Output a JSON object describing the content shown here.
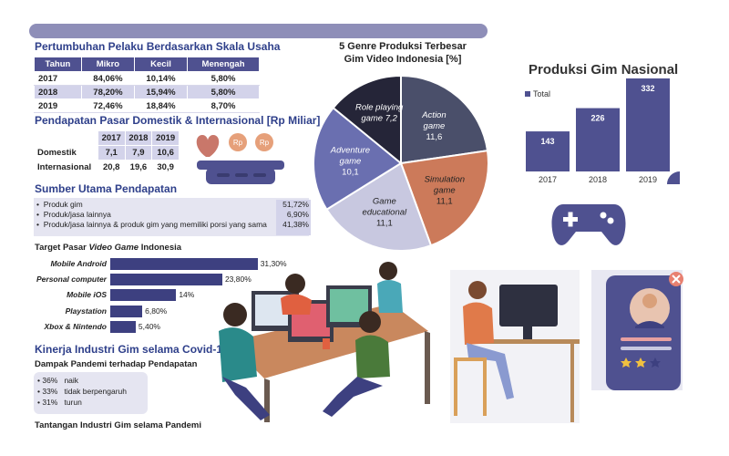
{
  "growth": {
    "title": "Pertumbuhan Pelaku Berdasarkan Skala Usaha",
    "headers": [
      "Tahun",
      "Mikro",
      "Kecil",
      "Menengah"
    ],
    "rows": [
      [
        "2017",
        "84,06%",
        "10,14%",
        "5,80%"
      ],
      [
        "2018",
        "78,20%",
        "15,94%",
        "5,80%"
      ],
      [
        "2019",
        "72,46%",
        "18,84%",
        "8,70%"
      ]
    ]
  },
  "market": {
    "title": "Pendapatan Pasar Domestik & Internasional [Rp Miliar]",
    "headers": [
      "2017",
      "2018",
      "2019"
    ],
    "rows": [
      [
        "Domestik",
        "7,1",
        "7,9",
        "10,6"
      ],
      [
        "Internasional",
        "20,8",
        "19,6",
        "30,9"
      ]
    ]
  },
  "revenue": {
    "title": "Sumber Utama Pendapatan",
    "items": [
      {
        "label": "Produk gim",
        "value": "51,72%"
      },
      {
        "label": "Produk/jasa lainnya",
        "value": "6,90%"
      },
      {
        "label": "Produk/jasa lainnya & produk gim yang memiliki porsi yang sama",
        "value": "41,38%"
      }
    ]
  },
  "target": {
    "title_plain": "Target Pasar ",
    "title_italic": "Video Game",
    "title_end": " Indonesia"
  },
  "covid": {
    "title": "Kinerja Industri Gim selama Covid-19",
    "subtitle": "Dampak Pandemi terhadap Pendapatan",
    "items": [
      {
        "pct": "36%",
        "label": "naik"
      },
      {
        "pct": "33%",
        "label": "tidak berpengaruh"
      },
      {
        "pct": "31%",
        "label": "turun"
      }
    ],
    "footer": "Tantangan Industri Gim selama Pandemi"
  },
  "pie": {
    "title_line1": "5 Genre Produksi Terbesar",
    "title_line2": "Gim Video Indonesia [%]"
  },
  "national": {
    "title": "Produksi Gim Nasional",
    "legend": "Total"
  },
  "colors": {
    "navy": "#3d4080",
    "dark_slate": "#4a4f6a",
    "terracotta": "#cc7a5a",
    "lavender": "#c8c8e0",
    "periwinkle": "#6a6fb0",
    "charcoal": "#252538"
  },
  "chart_data": [
    {
      "type": "bar",
      "orientation": "horizontal",
      "title": "Target Pasar Video Game Indonesia",
      "categories": [
        "Mobile Android",
        "Personal computer",
        "Mobile iOS",
        "Playstation",
        "Xbox & Nintendo"
      ],
      "values": [
        31.3,
        23.8,
        14,
        6.8,
        5.4
      ],
      "labels": [
        "31,30%",
        "23,80%",
        "14%",
        "6,80%",
        "5,40%"
      ],
      "xlim": [
        0,
        32
      ]
    },
    {
      "type": "pie",
      "title": "5 Genre Produksi Terbesar Gim Video Indonesia [%]",
      "slices": [
        {
          "name": "Action game",
          "value": 11.6,
          "label": "11,6",
          "color": "#4a4f6a"
        },
        {
          "name": "Simulation game",
          "value": 11.1,
          "label": "11,1",
          "color": "#cc7a5a"
        },
        {
          "name": "Game educational",
          "value": 11.1,
          "label": "11,1",
          "color": "#c8c8e0"
        },
        {
          "name": "Adventure game",
          "value": 10.1,
          "label": "10,1",
          "color": "#6a6fb0"
        },
        {
          "name": "Role playing game",
          "value": 7.2,
          "label": "7,2",
          "color": "#252538"
        }
      ]
    },
    {
      "type": "bar",
      "title": "Produksi Gim Nasional",
      "categories": [
        "2017",
        "2018",
        "2019"
      ],
      "series": [
        {
          "name": "Total",
          "values": [
            143,
            226,
            332
          ]
        }
      ],
      "ylim": [
        0,
        360
      ]
    }
  ]
}
